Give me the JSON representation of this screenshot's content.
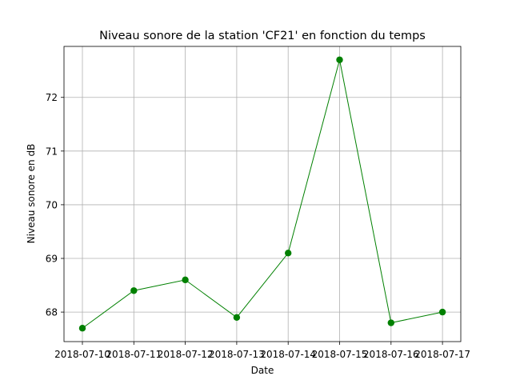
{
  "chart_data": {
    "type": "line",
    "title": "Niveau sonore de la station 'CF21' en fonction du temps",
    "xlabel": "Date",
    "ylabel": "Niveau sonore en dB",
    "x": [
      "2018-07-10",
      "2018-07-11",
      "2018-07-12",
      "2018-07-13",
      "2018-07-14",
      "2018-07-15",
      "2018-07-16",
      "2018-07-17"
    ],
    "y_ticks": [
      68,
      69,
      70,
      71,
      72
    ],
    "ylim": [
      67.45,
      72.95
    ],
    "grid": true,
    "series": [
      {
        "values": [
          67.7,
          68.4,
          68.6,
          67.9,
          69.1,
          72.7,
          67.8,
          68.0
        ],
        "color": "#008000",
        "marker": "circle"
      }
    ]
  }
}
